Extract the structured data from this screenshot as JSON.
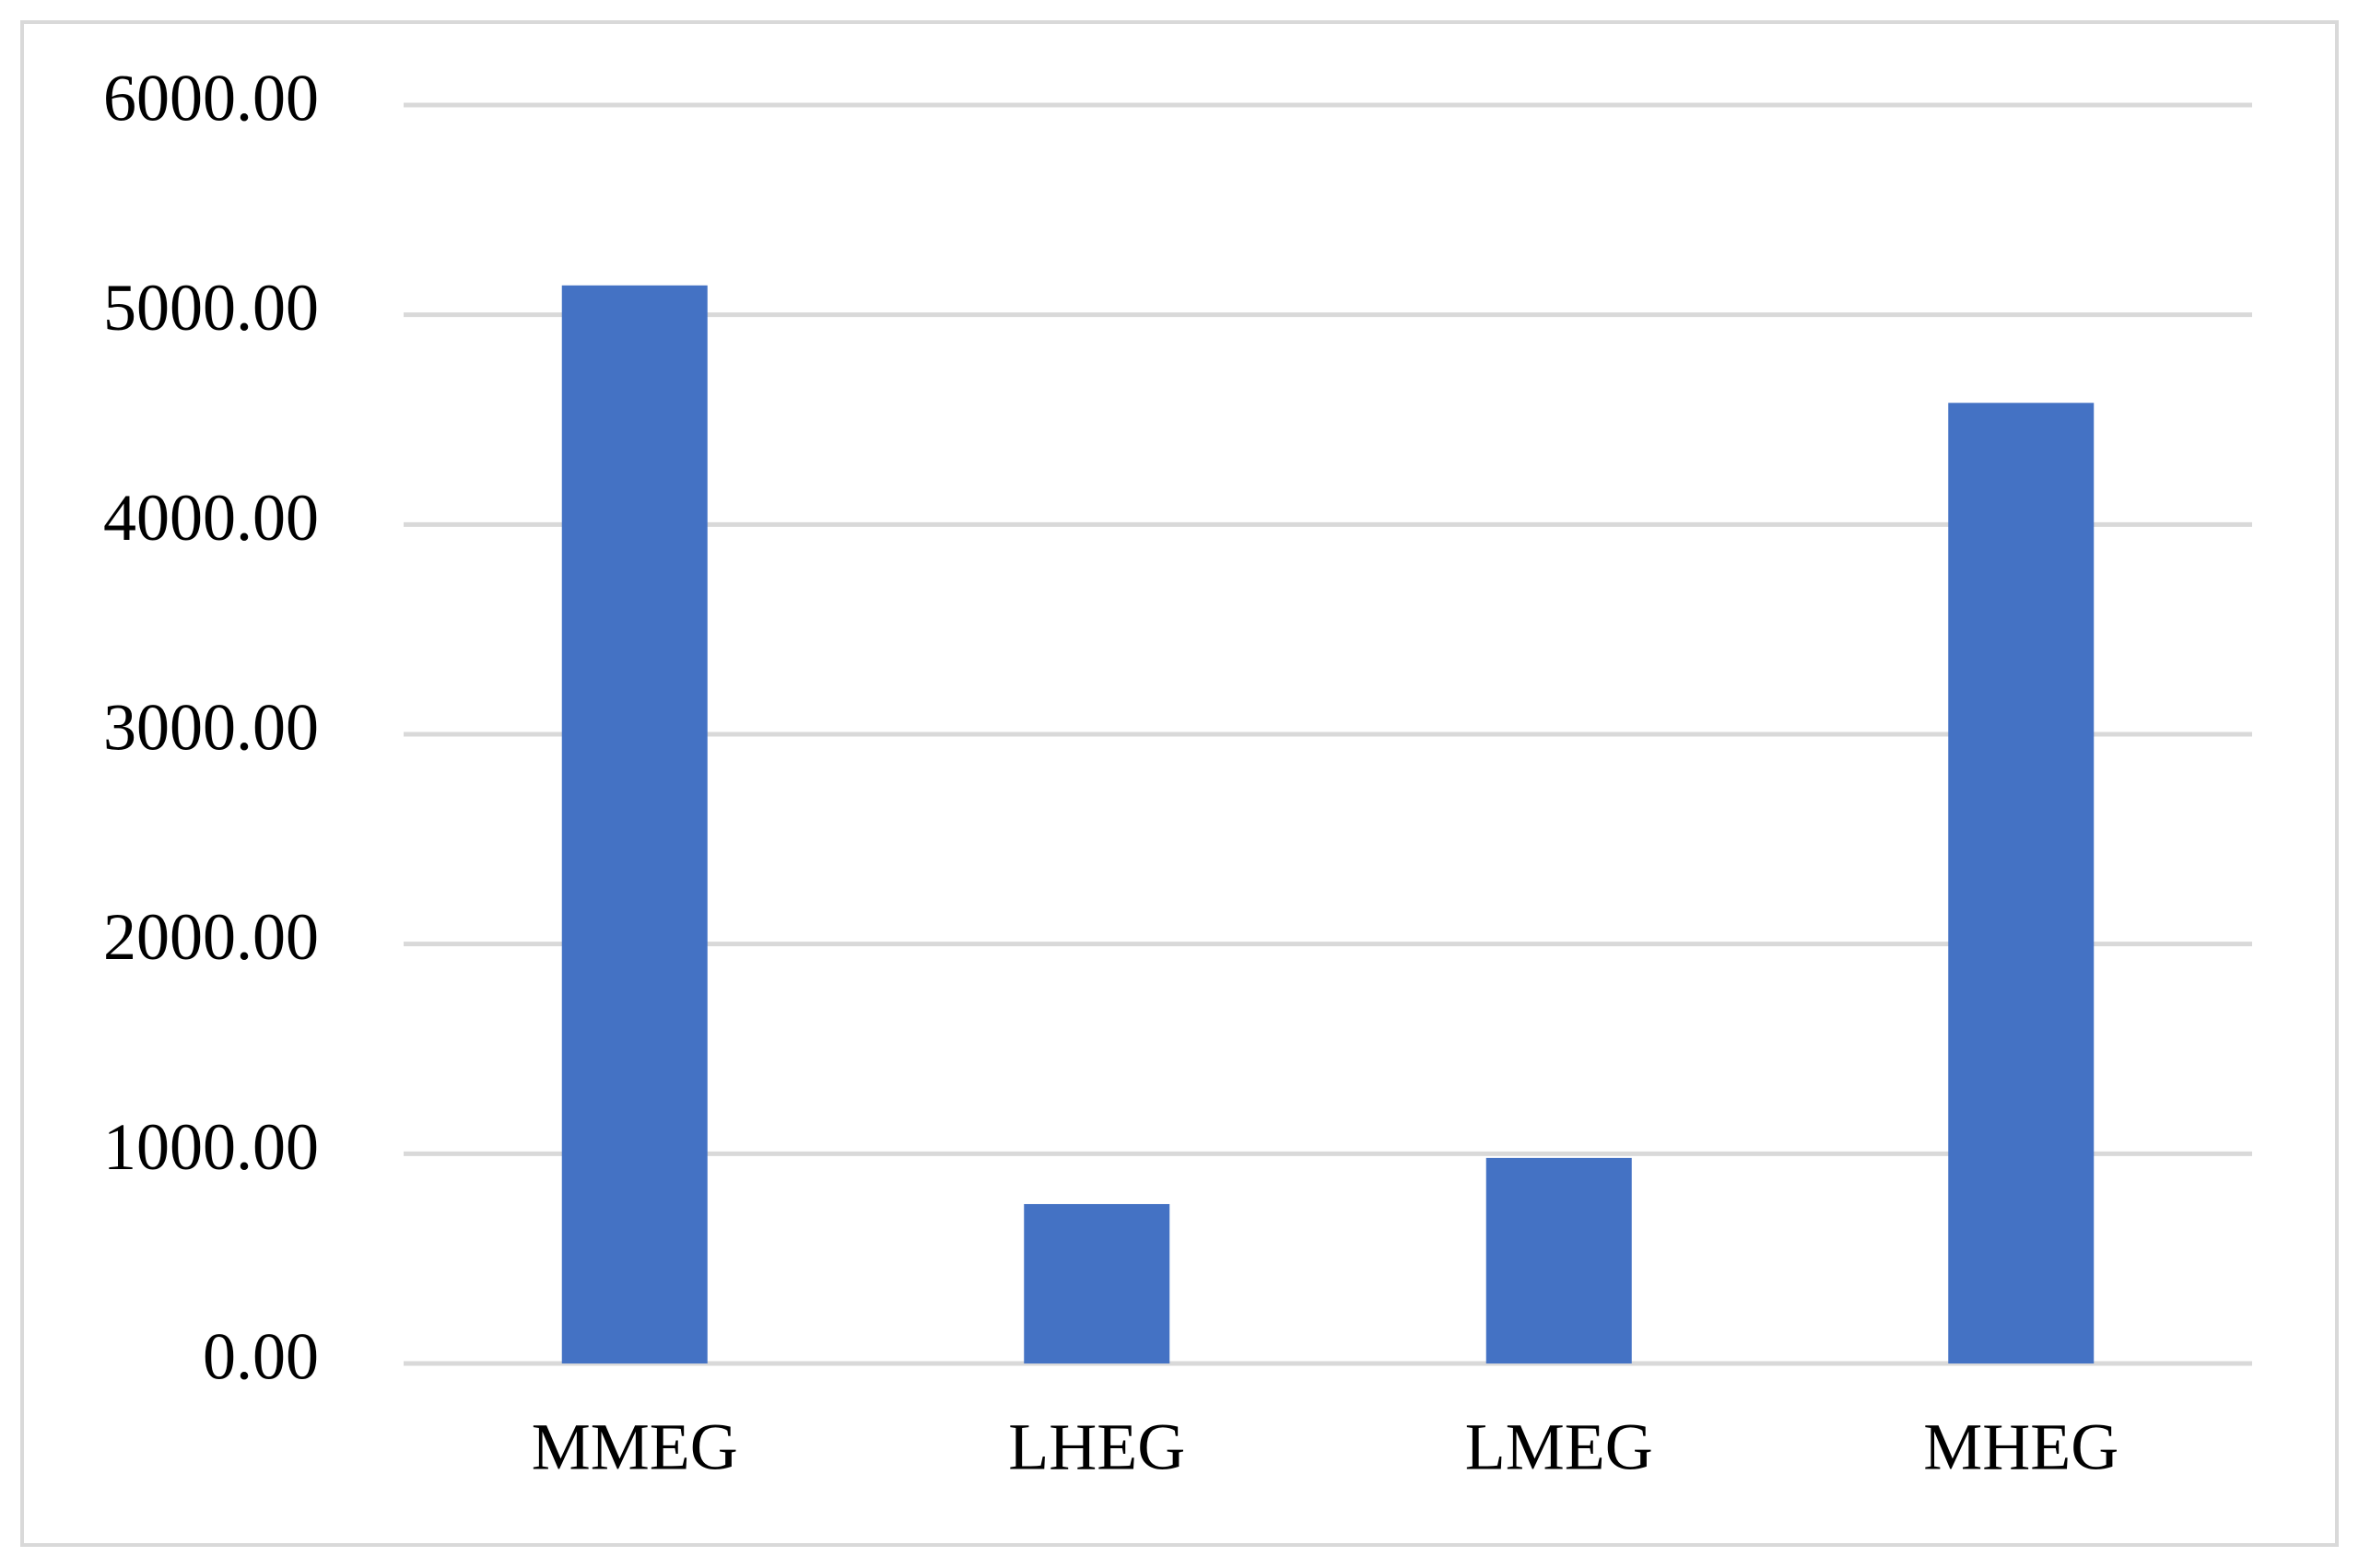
{
  "chart_data": {
    "type": "bar",
    "categories": [
      "MMEG",
      "LHEG",
      "LMEG",
      "MHEG"
    ],
    "values": [
      5140,
      760,
      980,
      4580
    ],
    "color": "#4472c4",
    "ylim": [
      0,
      6000
    ],
    "yticks": [
      {
        "value": 0,
        "label": "0.00"
      },
      {
        "value": 1000,
        "label": "1000.00"
      },
      {
        "value": 2000,
        "label": "2000.00"
      },
      {
        "value": 3000,
        "label": "3000.00"
      },
      {
        "value": 4000,
        "label": "4000.00"
      },
      {
        "value": 5000,
        "label": "5000.00"
      },
      {
        "value": 6000,
        "label": "6000.00"
      }
    ],
    "grid": true
  }
}
